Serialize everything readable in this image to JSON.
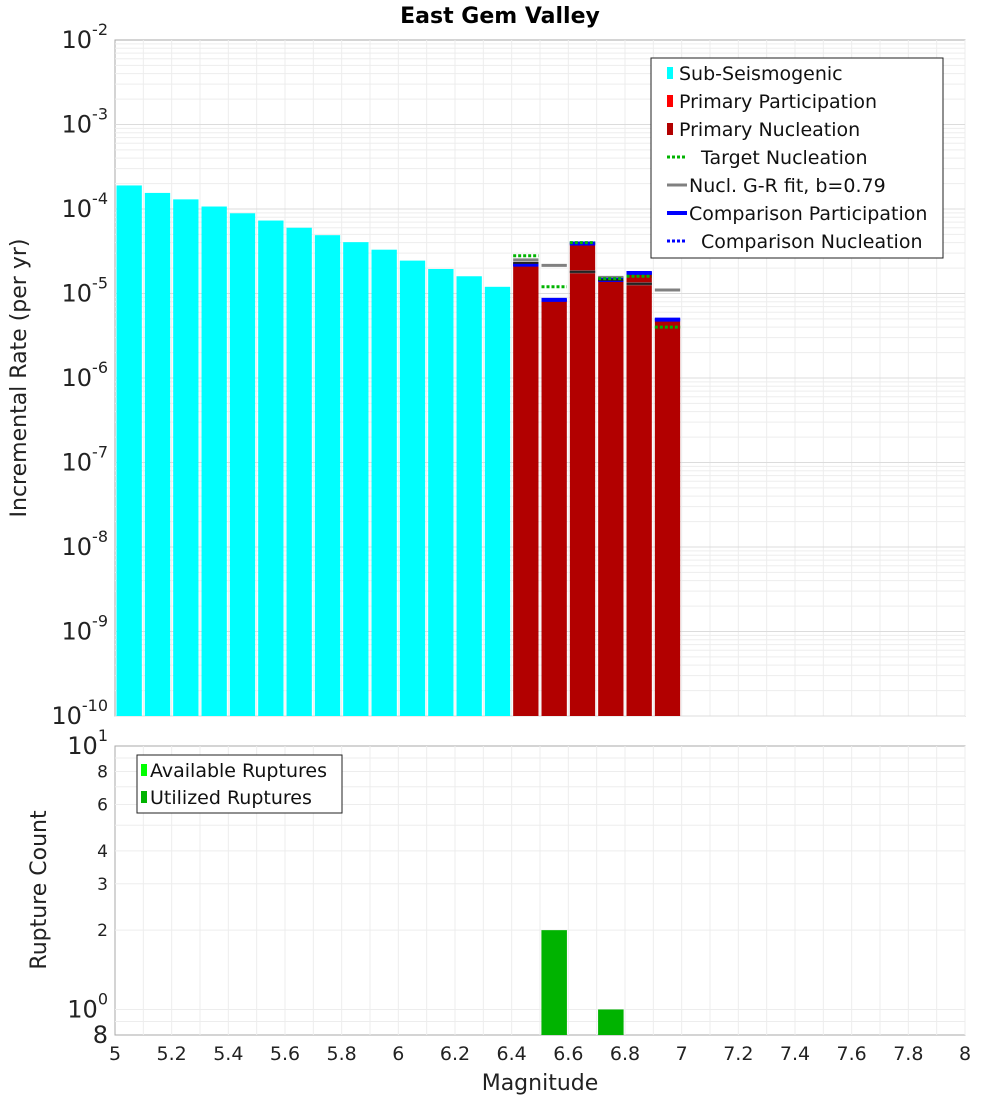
{
  "chart_data": [
    {
      "type": "bar",
      "title": "East Gem Valley",
      "xlabel": "",
      "ylabel": "Incremental Rate (per yr)",
      "yscale": "log",
      "xlim": [
        5,
        8
      ],
      "ylim": [
        1e-10,
        0.01
      ],
      "ytick_exponents": [
        "-10",
        "-9",
        "-8",
        "-7",
        "-6",
        "-5",
        "-4",
        "-3",
        "-2"
      ],
      "ytick_base": "10",
      "legend_position": "top-right",
      "legend": [
        {
          "label": "Sub-Seismogenic",
          "color": "#00ffff",
          "style": "bar"
        },
        {
          "label": "Primary Participation",
          "color": "#ff0000",
          "style": "bar"
        },
        {
          "label": "Primary Nucleation",
          "color": "#b20000",
          "style": "bar"
        },
        {
          "label": "Target Nucleation",
          "color": "#00b300",
          "style": "dotted"
        },
        {
          "label": "Nucl. G-R fit, b=0.79",
          "color": "#808080",
          "style": "solid"
        },
        {
          "label": "Comparison Participation",
          "color": "#0000ff",
          "style": "thick"
        },
        {
          "label": "Comparison Nucleation",
          "color": "#0000ff",
          "style": "dotted"
        }
      ],
      "series": [
        {
          "name": "Sub-Seismogenic",
          "color": "#00ffff",
          "x": [
            5.05,
            5.15,
            5.25,
            5.35,
            5.45,
            5.55,
            5.65,
            5.75,
            5.85,
            5.95,
            6.05,
            6.15,
            6.25,
            6.35
          ],
          "values": [
            0.00019,
            0.000155,
            0.00013,
            0.000107,
            8.9e-05,
            7.3e-05,
            6e-05,
            4.9e-05,
            4.05e-05,
            3.3e-05,
            2.45e-05,
            1.95e-05,
            1.6e-05,
            1.2e-05
          ]
        },
        {
          "name": "Primary Nucleation",
          "color": "#b20000",
          "x": [
            6.45,
            6.55,
            6.65,
            6.75,
            6.85,
            6.95
          ],
          "values": [
            2.2e-05,
            8.4e-06,
            3.9e-05,
            1.45e-05,
            1.75e-05,
            4.7e-06
          ]
        },
        {
          "name": "Comparison Participation",
          "color": "#0000ff",
          "x": [
            6.45,
            6.55,
            6.65,
            6.75,
            6.85,
            6.95
          ],
          "values": [
            2.2e-05,
            8.4e-06,
            3.9e-05,
            1.45e-05,
            1.75e-05,
            4.9e-06
          ]
        },
        {
          "name": "Target Nucleation",
          "color": "#00b300",
          "x": [
            6.45,
            6.55,
            6.65,
            6.75,
            6.85,
            6.95
          ],
          "values": [
            2.8e-05,
            1.2e-05,
            4e-05,
            1.5e-05,
            1.6e-05,
            4e-06
          ]
        },
        {
          "name": "Nucl. G-R fit, b=0.79",
          "color": "#808080",
          "x": [
            6.45,
            6.55,
            6.65,
            6.75,
            6.85,
            6.95
          ],
          "values": [
            2.5e-05,
            2.15e-05,
            1.8e-05,
            1.55e-05,
            1.3e-05,
            1.1e-05
          ]
        },
        {
          "name": "Nucleation marker",
          "color": "#222222",
          "x": [
            6.45,
            6.65,
            6.75,
            6.85
          ],
          "values": [
            2.3e-05,
            1.8e-05,
            1.45e-05,
            1.3e-05
          ]
        }
      ]
    },
    {
      "type": "bar",
      "title": "",
      "xlabel": "Magnitude",
      "ylabel": "Rupture Count",
      "yscale": "log",
      "xlim": [
        5,
        8
      ],
      "ylim": [
        0.8,
        10
      ],
      "xticks": [
        "5",
        "5.2",
        "5.4",
        "5.6",
        "5.8",
        "6",
        "6.2",
        "6.4",
        "6.6",
        "6.8",
        "7",
        "7.2",
        "7.4",
        "7.6",
        "7.8",
        "8"
      ],
      "yticks_major": [
        {
          "base": "10",
          "exp": "0",
          "value": 1
        },
        {
          "base": "10",
          "exp": "1",
          "value": 10
        }
      ],
      "yticks_minor": [
        {
          "label": "2",
          "value": 2
        },
        {
          "label": "3",
          "value": 3
        },
        {
          "label": "4",
          "value": 4
        },
        {
          "label": "6",
          "value": 6
        },
        {
          "label": "8",
          "value": 8
        },
        {
          "label": "8",
          "value": 0.8
        }
      ],
      "legend_position": "top-left",
      "legend": [
        {
          "label": "Available Ruptures",
          "color": "#00ff00"
        },
        {
          "label": "Utilized Ruptures",
          "color": "#00b300"
        }
      ],
      "series": [
        {
          "name": "Utilized Ruptures",
          "color": "#00b300",
          "x": [
            6.55,
            6.75
          ],
          "values": [
            2,
            1
          ]
        }
      ]
    }
  ]
}
